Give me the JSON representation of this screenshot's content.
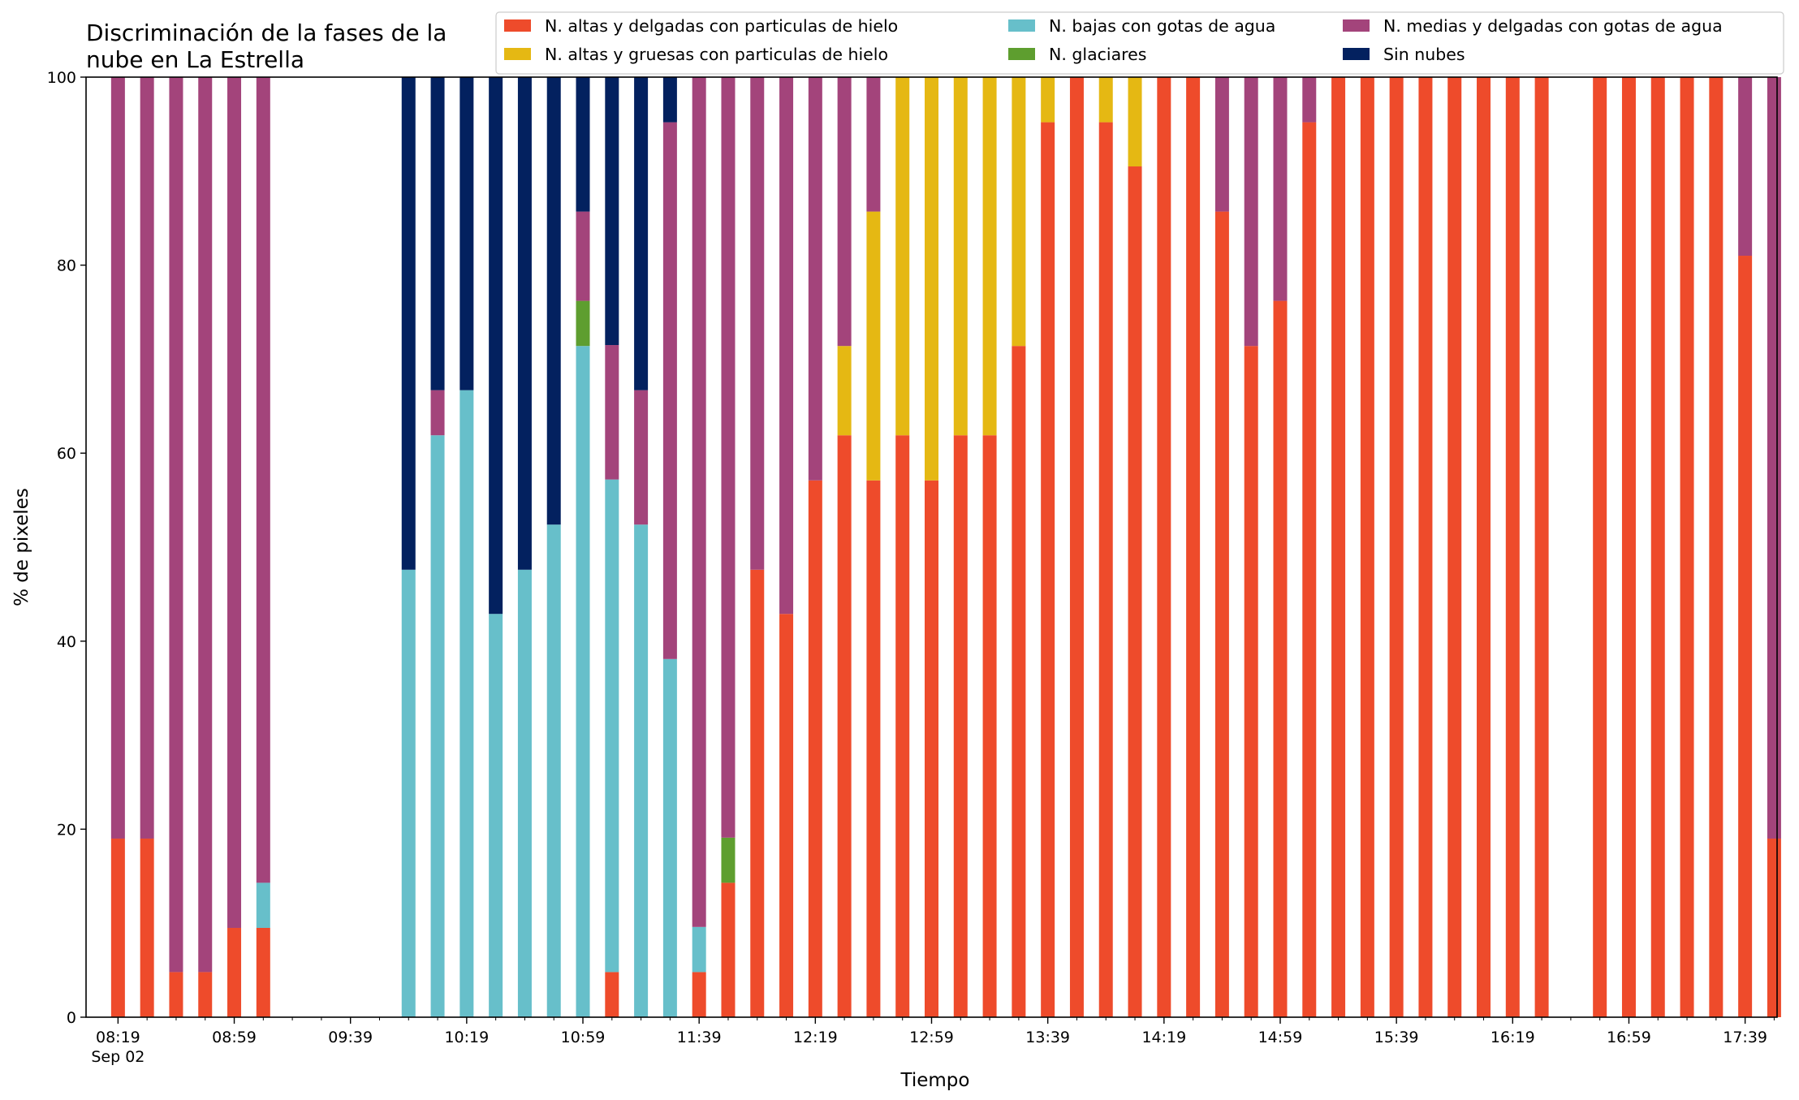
{
  "chart_data": {
    "type": "bar",
    "stacked": true,
    "title_lines": [
      "Discriminación de la fases de la",
      "nube en La Estrella"
    ],
    "xlabel": "Tiempo",
    "ylabel": "% de pixeles",
    "ylim": [
      0,
      100
    ],
    "yticks": [
      0,
      20,
      40,
      60,
      80,
      100
    ],
    "xlim_minutes": [
      8,
      590
    ],
    "date_label": "Sep 02",
    "xtick_labels": [
      "08:19",
      "08:59",
      "09:39",
      "10:19",
      "10:59",
      "11:39",
      "12:19",
      "12:59",
      "13:39",
      "14:19",
      "14:59",
      "15:39",
      "16:19",
      "16:59",
      "17:39"
    ],
    "xtick_minutes": [
      19,
      59,
      99,
      139,
      179,
      219,
      259,
      299,
      339,
      379,
      419,
      459,
      499,
      539,
      579
    ],
    "minor_tick_minutes": [
      29,
      39,
      49,
      69,
      79,
      89,
      109,
      119,
      129,
      149,
      159,
      169,
      189,
      199,
      209,
      229,
      239,
      249,
      269,
      279,
      289,
      309,
      319,
      329,
      349,
      359,
      369,
      389,
      399,
      409,
      429,
      439,
      449,
      469,
      479,
      489,
      509,
      519,
      529,
      549,
      559,
      569,
      589
    ],
    "grid": false,
    "legend_position": "top-right",
    "legend_ncol": 3,
    "series": [
      {
        "name": "N. altas y delgadas con particulas de hielo",
        "color": "#ee4b2b"
      },
      {
        "name": "N. altas y gruesas con particulas de hielo",
        "color": "#e5b813"
      },
      {
        "name": "N. bajas con gotas de agua",
        "color": "#67bfca"
      },
      {
        "name": "N. glaciares",
        "color": "#5e9e2f"
      },
      {
        "name": "N. medias y delgadas con gotas de agua",
        "color": "#a3447b"
      },
      {
        "name": "Sin nubes",
        "color": "#03215f"
      }
    ],
    "stack_order": [
      0,
      2,
      3,
      1,
      4,
      5
    ],
    "time_unit": "minutes after 08:00, Sep 02",
    "bars": [
      {
        "t": 19,
        "values": [
          19.0,
          0,
          0,
          0,
          81.0,
          0
        ]
      },
      {
        "t": 29,
        "values": [
          19.0,
          0,
          0,
          0,
          81.0,
          0
        ]
      },
      {
        "t": 39,
        "values": [
          4.8,
          0,
          0,
          0,
          95.2,
          0
        ]
      },
      {
        "t": 49,
        "values": [
          4.8,
          0,
          0,
          0,
          95.2,
          0
        ]
      },
      {
        "t": 59,
        "values": [
          9.5,
          0,
          0,
          0,
          90.5,
          0
        ]
      },
      {
        "t": 69,
        "values": [
          9.5,
          0,
          4.8,
          0,
          85.7,
          0
        ]
      },
      {
        "t": 119,
        "values": [
          0,
          0,
          47.6,
          0,
          0,
          52.4
        ]
      },
      {
        "t": 129,
        "values": [
          0,
          0,
          61.9,
          0,
          4.8,
          33.3
        ]
      },
      {
        "t": 139,
        "values": [
          0,
          0,
          66.7,
          0,
          0,
          33.3
        ]
      },
      {
        "t": 149,
        "values": [
          0,
          0,
          42.9,
          0,
          0,
          57.1
        ]
      },
      {
        "t": 159,
        "values": [
          0,
          0,
          47.6,
          0,
          0,
          52.4
        ]
      },
      {
        "t": 169,
        "values": [
          0,
          0,
          52.4,
          0,
          0,
          47.6
        ]
      },
      {
        "t": 179,
        "values": [
          0,
          0,
          71.4,
          4.8,
          9.5,
          14.3
        ]
      },
      {
        "t": 189,
        "values": [
          4.8,
          0,
          52.4,
          0,
          14.3,
          28.5
        ]
      },
      {
        "t": 199,
        "values": [
          0,
          0,
          52.4,
          0,
          14.3,
          33.3
        ]
      },
      {
        "t": 209,
        "values": [
          0,
          0,
          38.1,
          0,
          57.1,
          4.8
        ]
      },
      {
        "t": 219,
        "values": [
          4.8,
          0,
          4.8,
          0,
          90.4,
          0
        ]
      },
      {
        "t": 229,
        "values": [
          14.3,
          0,
          0,
          4.8,
          80.9,
          0
        ]
      },
      {
        "t": 239,
        "values": [
          47.6,
          0,
          0,
          0,
          52.4,
          0
        ]
      },
      {
        "t": 249,
        "values": [
          42.9,
          0,
          0,
          0,
          57.1,
          0
        ]
      },
      {
        "t": 259,
        "values": [
          57.1,
          0,
          0,
          0,
          42.9,
          0
        ]
      },
      {
        "t": 269,
        "values": [
          61.9,
          9.5,
          0,
          0,
          28.6,
          0
        ]
      },
      {
        "t": 279,
        "values": [
          57.1,
          28.6,
          0,
          0,
          14.3,
          0
        ]
      },
      {
        "t": 289,
        "values": [
          61.9,
          38.1,
          0,
          0,
          0,
          0
        ]
      },
      {
        "t": 299,
        "values": [
          57.1,
          42.9,
          0,
          0,
          0,
          0
        ]
      },
      {
        "t": 309,
        "values": [
          61.9,
          38.1,
          0,
          0,
          0,
          0
        ]
      },
      {
        "t": 319,
        "values": [
          61.9,
          38.1,
          0,
          0,
          0,
          0
        ]
      },
      {
        "t": 329,
        "values": [
          71.4,
          28.6,
          0,
          0,
          0,
          0
        ]
      },
      {
        "t": 339,
        "values": [
          95.2,
          4.8,
          0,
          0,
          0,
          0
        ]
      },
      {
        "t": 349,
        "values": [
          100,
          0,
          0,
          0,
          0,
          0
        ]
      },
      {
        "t": 359,
        "values": [
          95.2,
          4.8,
          0,
          0,
          0,
          0
        ]
      },
      {
        "t": 369,
        "values": [
          90.5,
          9.5,
          0,
          0,
          0,
          0
        ]
      },
      {
        "t": 379,
        "values": [
          100,
          0,
          0,
          0,
          0,
          0
        ]
      },
      {
        "t": 389,
        "values": [
          100,
          0,
          0,
          0,
          0,
          0
        ]
      },
      {
        "t": 399,
        "values": [
          85.7,
          0,
          0,
          0,
          14.3,
          0
        ]
      },
      {
        "t": 409,
        "values": [
          71.4,
          0,
          0,
          0,
          28.6,
          0
        ]
      },
      {
        "t": 419,
        "values": [
          76.2,
          0,
          0,
          0,
          23.8,
          0
        ]
      },
      {
        "t": 429,
        "values": [
          95.2,
          0,
          0,
          0,
          4.8,
          0
        ]
      },
      {
        "t": 439,
        "values": [
          100,
          0,
          0,
          0,
          0,
          0
        ]
      },
      {
        "t": 449,
        "values": [
          100,
          0,
          0,
          0,
          0,
          0
        ]
      },
      {
        "t": 459,
        "values": [
          100,
          0,
          0,
          0,
          0,
          0
        ]
      },
      {
        "t": 469,
        "values": [
          100,
          0,
          0,
          0,
          0,
          0
        ]
      },
      {
        "t": 479,
        "values": [
          100,
          0,
          0,
          0,
          0,
          0
        ]
      },
      {
        "t": 489,
        "values": [
          100,
          0,
          0,
          0,
          0,
          0
        ]
      },
      {
        "t": 499,
        "values": [
          100,
          0,
          0,
          0,
          0,
          0
        ]
      },
      {
        "t": 509,
        "values": [
          100,
          0,
          0,
          0,
          0,
          0
        ]
      },
      {
        "t": 529,
        "values": [
          100,
          0,
          0,
          0,
          0,
          0
        ]
      },
      {
        "t": 539,
        "values": [
          100,
          0,
          0,
          0,
          0,
          0
        ]
      },
      {
        "t": 549,
        "values": [
          100,
          0,
          0,
          0,
          0,
          0
        ]
      },
      {
        "t": 559,
        "values": [
          100,
          0,
          0,
          0,
          0,
          0
        ]
      },
      {
        "t": 569,
        "values": [
          100,
          0,
          0,
          0,
          0,
          0
        ]
      },
      {
        "t": 579,
        "values": [
          81.0,
          0,
          0,
          0,
          19.0,
          0
        ]
      },
      {
        "t": 589,
        "values": [
          19.0,
          0,
          0,
          0,
          81.0,
          0
        ]
      }
    ]
  }
}
